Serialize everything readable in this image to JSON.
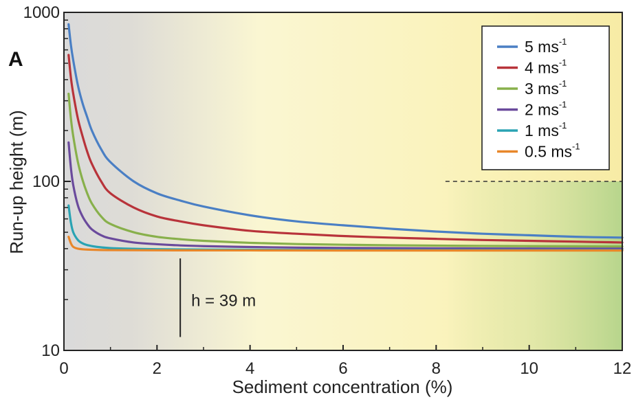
{
  "panel_label": "A",
  "chart_data": {
    "type": "line",
    "xlabel": "Sediment concentration (%)",
    "ylabel": "Run-up height (m)",
    "xlim": [
      0,
      12
    ],
    "ylim": [
      10,
      1000
    ],
    "yscale": "log",
    "x_ticks": [
      0,
      2,
      4,
      6,
      8,
      10,
      12
    ],
    "y_ticks": [
      10,
      100,
      1000
    ],
    "grid": false,
    "legend_position": "top-right",
    "series": [
      {
        "name": "5 ms-1",
        "label": "5 ms",
        "sup": "-1",
        "color": "#4a7fc4",
        "x": [
          0.1,
          0.15,
          0.2,
          0.3,
          0.4,
          0.5,
          0.6,
          0.8,
          1,
          1.5,
          2,
          2.5,
          3,
          4,
          5,
          6,
          7,
          8,
          9,
          10,
          11,
          12
        ],
        "y": [
          850,
          640,
          520,
          370,
          290,
          240,
          200,
          155,
          130,
          100,
          85,
          77,
          71,
          63,
          58,
          55,
          52.5,
          50.5,
          49,
          48,
          47,
          46.5
        ]
      },
      {
        "name": "4 ms-1",
        "label": "4 ms",
        "sup": "-1",
        "color": "#b8333a",
        "x": [
          0.1,
          0.15,
          0.2,
          0.3,
          0.4,
          0.5,
          0.6,
          0.8,
          1,
          1.5,
          2,
          2.5,
          3,
          4,
          5,
          6,
          7,
          8,
          9,
          10,
          11,
          12
        ],
        "y": [
          560,
          410,
          330,
          235,
          185,
          150,
          127,
          100,
          85,
          70,
          62,
          58,
          55,
          51,
          49,
          47.5,
          46.5,
          45.7,
          45,
          44.5,
          44,
          43.5
        ]
      },
      {
        "name": "3 ms-1",
        "label": "3 ms",
        "sup": "-1",
        "color": "#88b04b",
        "x": [
          0.1,
          0.15,
          0.2,
          0.3,
          0.4,
          0.5,
          0.6,
          0.8,
          1,
          1.5,
          2,
          2.5,
          3,
          4,
          5,
          6,
          7,
          8,
          9,
          10,
          11,
          12
        ],
        "y": [
          330,
          235,
          185,
          130,
          102,
          85,
          74,
          62,
          56,
          50,
          47,
          45.5,
          44.5,
          43.3,
          42.6,
          42.2,
          41.9,
          41.7,
          41.5,
          41.4,
          41.3,
          41.2
        ]
      },
      {
        "name": "2 ms-1",
        "label": "2 ms",
        "sup": "-1",
        "color": "#6a4a9c",
        "x": [
          0.1,
          0.15,
          0.2,
          0.3,
          0.4,
          0.5,
          0.6,
          0.8,
          1,
          1.5,
          2,
          2.5,
          3,
          4,
          5,
          6,
          7,
          8,
          9,
          10,
          11,
          12
        ],
        "y": [
          170,
          120,
          95,
          72,
          62,
          56,
          52,
          48,
          46,
          43.5,
          42.5,
          41.8,
          41.4,
          40.9,
          40.6,
          40.4,
          40.3,
          40.2,
          40.1,
          40.05,
          40,
          40
        ]
      },
      {
        "name": "1 ms-1",
        "label": "1 ms",
        "sup": "-1",
        "color": "#2aa3b3",
        "x": [
          0.1,
          0.15,
          0.2,
          0.3,
          0.4,
          0.5,
          0.7,
          1,
          1.5,
          2,
          3,
          4,
          6,
          8,
          10,
          12
        ],
        "y": [
          72,
          57,
          50,
          45,
          43,
          42,
          41,
          40.3,
          39.9,
          39.7,
          39.5,
          39.4,
          39.3,
          39.25,
          39.2,
          39.2
        ]
      },
      {
        "name": "0.5 ms-1",
        "label": "0.5 ms",
        "sup": "-1",
        "color": "#e8872a",
        "x": [
          0.1,
          0.15,
          0.2,
          0.3,
          0.5,
          1,
          2,
          4,
          6,
          8,
          10,
          12
        ],
        "y": [
          47,
          43,
          41,
          40,
          39.5,
          39.2,
          39.1,
          39.05,
          39,
          39,
          39,
          39
        ]
      }
    ],
    "annotations": [
      {
        "text": "h = 39 m",
        "x": 2.5,
        "y_from": 12,
        "y_to": 35
      }
    ],
    "reference_line": {
      "style": "dashed",
      "y": 100,
      "x_from": 8.2,
      "x_to": 12
    },
    "background": {
      "gradient_stops": [
        "#dcdcdc",
        "#fbf6cf",
        "#f9f0b0",
        "#c5dc95"
      ]
    }
  }
}
